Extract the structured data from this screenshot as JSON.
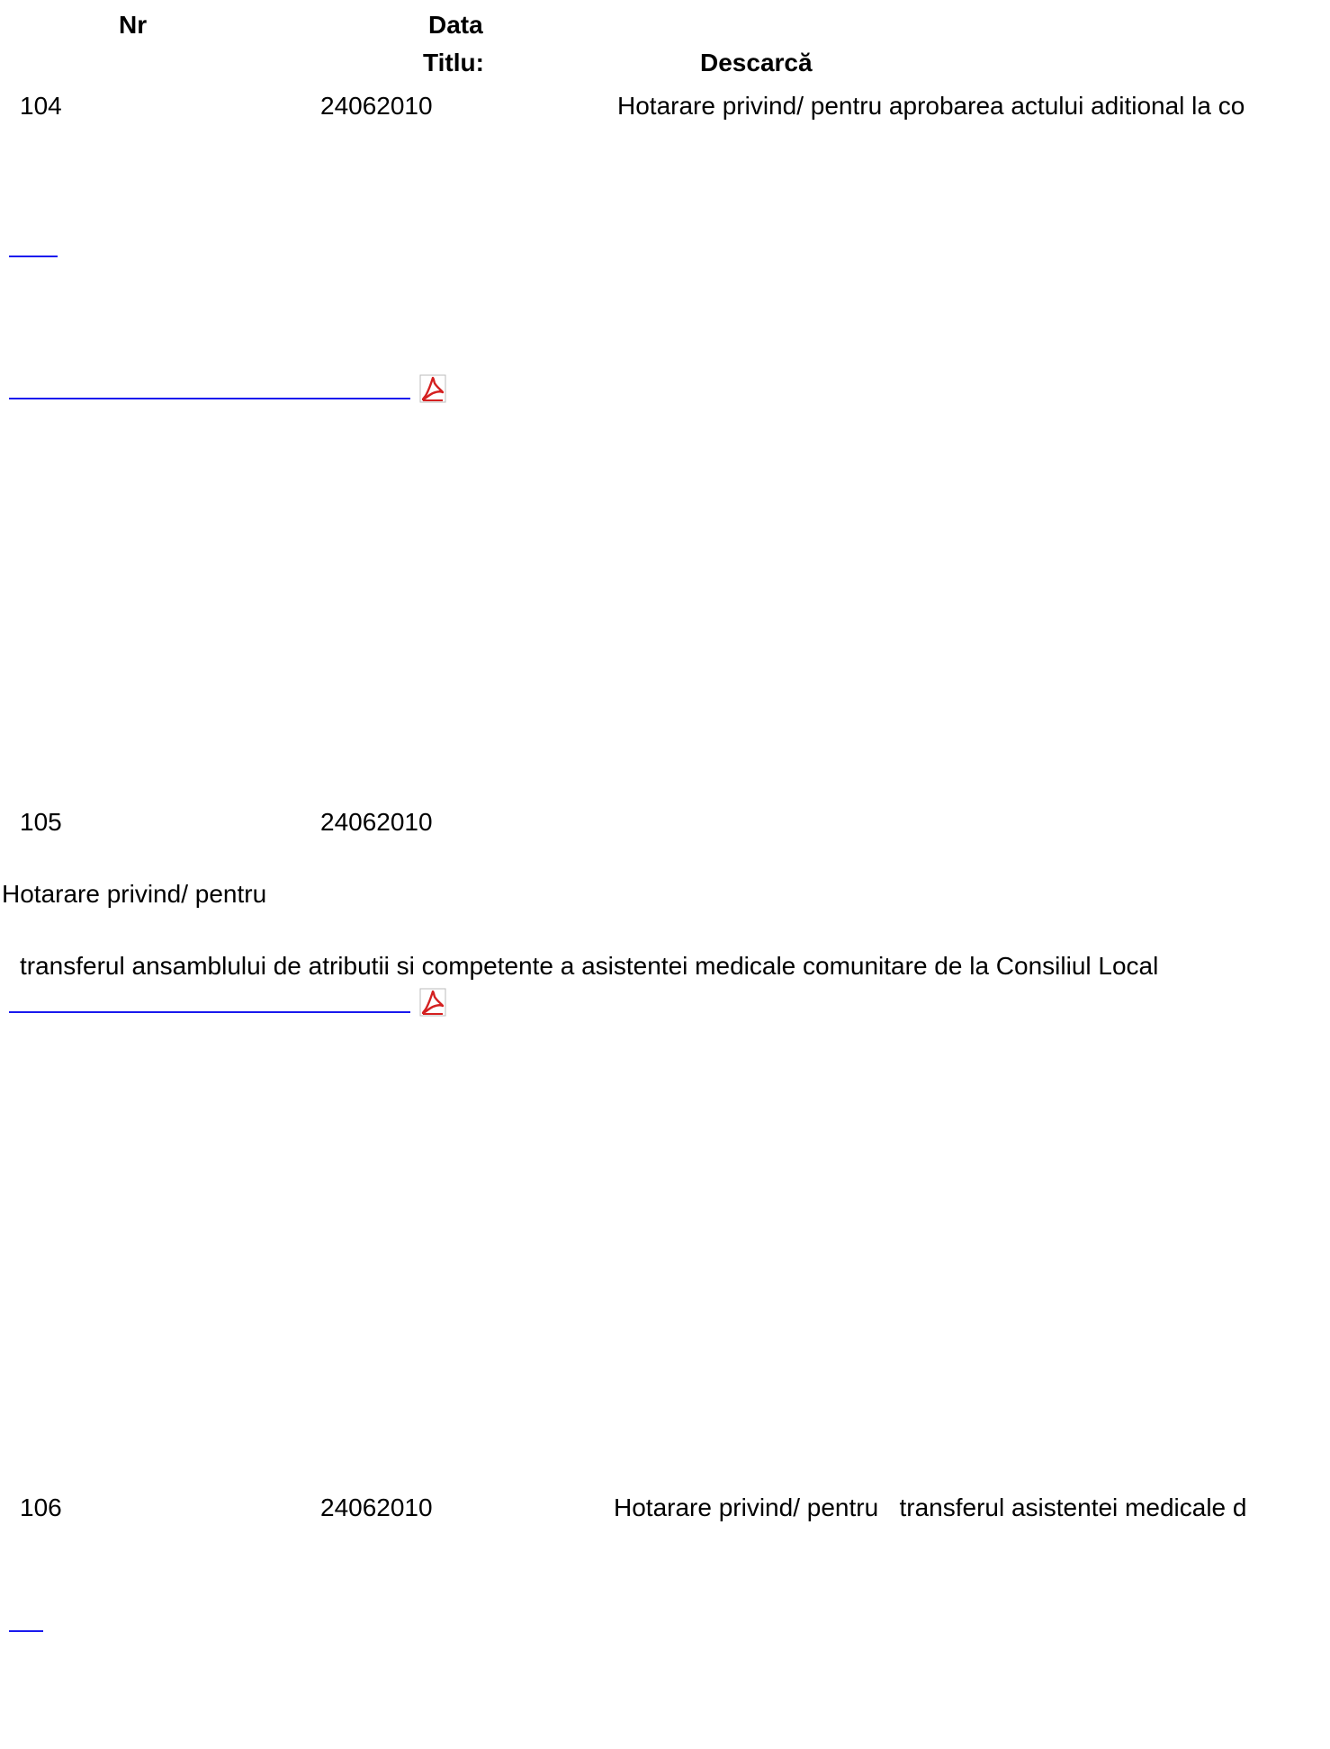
{
  "header": {
    "nr": "Nr",
    "data": "Data",
    "titlu": "Titlu:",
    "descarca": "Descarcă"
  },
  "rows": [
    {
      "nr": "104",
      "date": "24062010",
      "title": "Hotarare privind/ pentru aprobarea actului aditional la co"
    },
    {
      "nr": "105",
      "date": "24062010",
      "title_line1": "Hotarare privind/ pentru",
      "title_line2": "transferul ansamblului de atributii si competente a asistentei medicale comunitare de la Consiliul Local"
    },
    {
      "nr": "106",
      "date": "24062010",
      "title": "Hotarare privind/ pentru   transferul asistentei medicale d"
    }
  ],
  "colors": {
    "link": "#1a1aee",
    "pdf_icon": "#d42020"
  },
  "icons": {
    "download": "pdf-icon"
  }
}
